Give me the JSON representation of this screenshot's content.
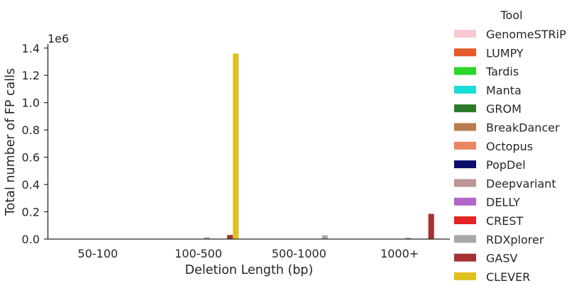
{
  "chart_data": {
    "type": "bar",
    "categories": [
      "50-100",
      "100-500",
      "500-1000",
      "1000+"
    ],
    "xlabel": "Deletion Length (bp)",
    "ylabel": "Total number of FP calls",
    "y_offset_label": "1e6",
    "yticks": [
      "0.0",
      "0.2",
      "0.4",
      "0.6",
      "0.8",
      "1.0",
      "1.2",
      "1.4"
    ],
    "ylim": [
      0,
      1430000
    ],
    "legend_title": "Tool",
    "legend_position": "right",
    "grid": false,
    "series": [
      {
        "name": "GenomeSTRiP",
        "color": "#f9c8d0",
        "values": [
          0,
          0,
          0,
          0
        ]
      },
      {
        "name": "LUMPY",
        "color": "#e55a28",
        "values": [
          0,
          0,
          0,
          0
        ]
      },
      {
        "name": "Tardis",
        "color": "#2ad62a",
        "values": [
          0,
          0,
          0,
          0
        ]
      },
      {
        "name": "Manta",
        "color": "#1adcd8",
        "values": [
          0,
          0,
          0,
          0
        ]
      },
      {
        "name": "GROM",
        "color": "#2a7a2a",
        "values": [
          0,
          0,
          0,
          0
        ]
      },
      {
        "name": "BreakDancer",
        "color": "#b87d4a",
        "values": [
          0,
          0,
          0,
          0
        ]
      },
      {
        "name": "Octopus",
        "color": "#ea8565",
        "values": [
          0,
          0,
          0,
          0
        ]
      },
      {
        "name": "PopDel",
        "color": "#0d0d6e",
        "values": [
          0,
          0,
          0,
          0
        ]
      },
      {
        "name": "Deepvariant",
        "color": "#bc9594",
        "values": [
          0,
          12000,
          0,
          10000
        ]
      },
      {
        "name": "DELLY",
        "color": "#b065c8",
        "values": [
          0,
          0,
          0,
          0
        ]
      },
      {
        "name": "CREST",
        "color": "#e32323",
        "values": [
          0,
          0,
          0,
          0
        ]
      },
      {
        "name": "RDXplorer",
        "color": "#a8a8a8",
        "values": [
          0,
          0,
          28000,
          0
        ]
      },
      {
        "name": "GASV",
        "color": "#a43232",
        "values": [
          0,
          30000,
          0,
          185000
        ]
      },
      {
        "name": "CLEVER",
        "color": "#e1bf1f",
        "values": [
          0,
          1360000,
          0,
          0
        ]
      }
    ]
  }
}
